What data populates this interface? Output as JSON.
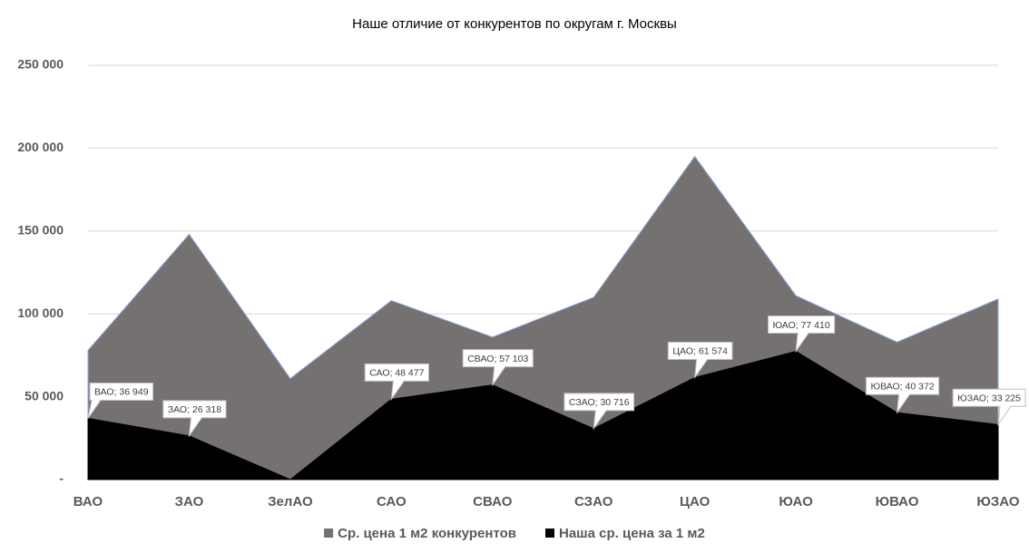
{
  "chart_data": {
    "type": "area",
    "title": "Наше отличие от конкурентов по округам г. Москвы",
    "categories": [
      "ВАО",
      "ЗАО",
      "ЗелАО",
      "САО",
      "СВАО",
      "СЗАО",
      "ЦАО",
      "ЮАО",
      "ЮВАО",
      "ЮЗАО"
    ],
    "series": [
      {
        "name": "Ср. цена 1 м2 конкурентов",
        "color": "#767171",
        "values": [
          78000,
          148000,
          61000,
          108000,
          86000,
          110000,
          195000,
          111000,
          83000,
          109000
        ]
      },
      {
        "name": "Наша ср. цена за 1 м2",
        "color": "#000000",
        "values": [
          36949,
          26318,
          0,
          48477,
          57103,
          30716,
          61574,
          77410,
          40372,
          33225
        ],
        "value_labels": [
          "ВАО; 36 949",
          "ЗАО; 26 318",
          null,
          "САО; 48 477",
          "СВАО; 57 103",
          "СЗАО; 30 716",
          "ЦАО; 61 574",
          "ЮАО; 77 410",
          "ЮВАО; 40 372",
          "ЮЗАО; 33 225"
        ]
      }
    ],
    "ylim": [
      0,
      250000
    ],
    "yticks": [
      {
        "value": 0,
        "label": "-"
      },
      {
        "value": 50000,
        "label": "50 000"
      },
      {
        "value": 100000,
        "label": "100 000"
      },
      {
        "value": 150000,
        "label": "150 000"
      },
      {
        "value": 200000,
        "label": "200 000"
      },
      {
        "value": 250000,
        "label": "250 000"
      }
    ],
    "grid": true,
    "legend": "bottom"
  }
}
